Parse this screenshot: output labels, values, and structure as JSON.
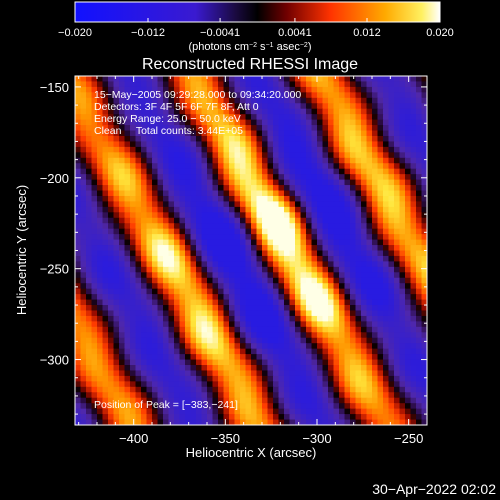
{
  "chart_data": {
    "type": "heatmap",
    "colorbar": {
      "min": -0.02,
      "max": 0.02,
      "tick_labels": [
        "−0.020",
        "−0.012",
        "−0.0041",
        "0.0041",
        "0.012",
        "0.020"
      ],
      "tick_values": [
        -0.02,
        -0.012,
        -0.0041,
        0.0041,
        0.012,
        0.02
      ],
      "units_prefix": "(photons cm",
      "units_exp1": "−2",
      "units_mid": " s",
      "units_exp2": "−1",
      "units_mid2": " asec",
      "units_exp3": "−2",
      "units_suffix": ")"
    },
    "title": "Reconstructed RHESSI Image",
    "xlabel": "Heliocentric X (arcsec)",
    "ylabel": "Heliocentric Y (arcsec)",
    "xlim": [
      -432,
      -240
    ],
    "ylim": [
      -336,
      -144
    ],
    "x_ticks": [
      -400,
      -350,
      -300,
      -250
    ],
    "x_tick_labels": [
      "−400",
      "−350",
      "−300",
      "−250"
    ],
    "y_ticks": [
      -150,
      -200,
      -250,
      -300
    ],
    "y_tick_labels": [
      "−150",
      "−200",
      "−250",
      "−300"
    ],
    "annotations": [
      "15−May−2005 09:29:28.000 to 09:34:20.000",
      "Detectors: 3F 4F 5F 6F 7F 8F, Att 0",
      "Energy Range: 25.0 − 50.0 keV",
      "Clean     Total counts: 3.44E+05"
    ],
    "peak_label": "Position of Peak = [−383,−241]",
    "peak": [
      -383,
      -241
    ],
    "colormap": "red-temperature (blue negative, black/purple near zero, red-yellow-white positive)",
    "pattern": "diagonal fringe stripes running from upper-left to lower-right",
    "grid": false
  },
  "footer": {
    "timestamp": "30−Apr−2022 02:02"
  }
}
